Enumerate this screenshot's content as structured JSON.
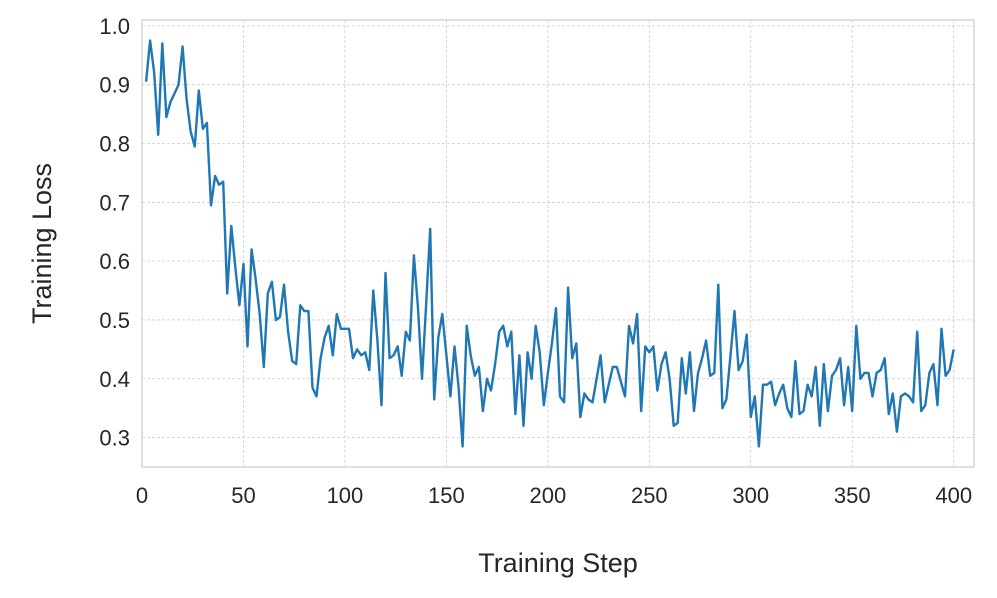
{
  "chart_data": {
    "type": "line",
    "xlabel": "Training Step",
    "ylabel": "Training Loss",
    "xlim": [
      0,
      410
    ],
    "ylim": [
      0.25,
      1.01
    ],
    "xticks": [
      0,
      50,
      100,
      150,
      200,
      250,
      300,
      350,
      400
    ],
    "yticks": [
      0.3,
      0.4,
      0.5,
      0.6,
      0.7,
      0.8,
      0.9,
      1.0
    ],
    "xtick_labels": [
      "0",
      "50",
      "100",
      "150",
      "200",
      "250",
      "300",
      "350",
      "400"
    ],
    "ytick_labels": [
      "0.3",
      "0.4",
      "0.5",
      "0.6",
      "0.7",
      "0.8",
      "0.9",
      "1.0"
    ],
    "grid": true,
    "line_color": "#1f77b4",
    "series": [
      {
        "x": [
          2,
          4,
          6,
          8,
          10,
          12,
          14,
          16,
          18,
          20,
          22,
          24,
          26,
          28,
          30,
          32,
          34,
          36,
          38,
          40,
          42,
          44,
          46,
          48,
          50,
          52,
          54,
          56,
          58,
          60,
          62,
          64,
          66,
          68,
          70,
          72,
          74,
          76,
          78,
          80,
          82,
          84,
          86,
          88,
          90,
          92,
          94,
          96,
          98,
          100,
          102,
          104,
          106,
          108,
          110,
          112,
          114,
          116,
          118,
          120,
          122,
          124,
          126,
          128,
          130,
          132,
          134,
          136,
          138,
          140,
          142,
          144,
          146,
          148,
          150,
          152,
          154,
          156,
          158,
          160,
          162,
          164,
          166,
          168,
          170,
          172,
          174,
          176,
          178,
          180,
          182,
          184,
          186,
          188,
          190,
          192,
          194,
          196,
          198,
          200,
          202,
          204,
          206,
          208,
          210,
          212,
          214,
          216,
          218,
          220,
          222,
          224,
          226,
          228,
          230,
          232,
          234,
          236,
          238,
          240,
          242,
          244,
          246,
          248,
          250,
          252,
          254,
          256,
          258,
          260,
          262,
          264,
          266,
          268,
          270,
          272,
          274,
          276,
          278,
          280,
          282,
          284,
          286,
          288,
          290,
          292,
          294,
          296,
          298,
          300,
          302,
          304,
          306,
          308,
          310,
          312,
          314,
          316,
          318,
          320,
          322,
          324,
          326,
          328,
          330,
          332,
          334,
          336,
          338,
          340,
          342,
          344,
          346,
          348,
          350,
          352,
          354,
          356,
          358,
          360,
          362,
          364,
          366,
          368,
          370,
          372,
          374,
          376,
          378,
          380,
          382,
          384,
          386,
          388,
          390,
          392,
          394,
          396,
          398,
          400
        ],
        "values": [
          0.905,
          0.975,
          0.92,
          0.815,
          0.97,
          0.845,
          0.87,
          0.885,
          0.9,
          0.965,
          0.875,
          0.82,
          0.795,
          0.89,
          0.825,
          0.835,
          0.695,
          0.745,
          0.73,
          0.735,
          0.545,
          0.66,
          0.59,
          0.525,
          0.595,
          0.455,
          0.62,
          0.57,
          0.51,
          0.42,
          0.545,
          0.565,
          0.5,
          0.505,
          0.56,
          0.48,
          0.43,
          0.425,
          0.525,
          0.515,
          0.515,
          0.385,
          0.37,
          0.435,
          0.47,
          0.49,
          0.44,
          0.51,
          0.485,
          0.485,
          0.485,
          0.435,
          0.45,
          0.44,
          0.445,
          0.415,
          0.55,
          0.465,
          0.355,
          0.58,
          0.435,
          0.44,
          0.455,
          0.405,
          0.48,
          0.465,
          0.61,
          0.52,
          0.4,
          0.525,
          0.655,
          0.365,
          0.47,
          0.51,
          0.44,
          0.37,
          0.455,
          0.385,
          0.285,
          0.49,
          0.44,
          0.405,
          0.42,
          0.345,
          0.4,
          0.38,
          0.425,
          0.48,
          0.49,
          0.455,
          0.48,
          0.34,
          0.44,
          0.32,
          0.445,
          0.4,
          0.49,
          0.445,
          0.355,
          0.41,
          0.46,
          0.52,
          0.37,
          0.36,
          0.555,
          0.435,
          0.46,
          0.335,
          0.375,
          0.365,
          0.36,
          0.4,
          0.44,
          0.36,
          0.39,
          0.42,
          0.42,
          0.395,
          0.37,
          0.49,
          0.46,
          0.51,
          0.345,
          0.455,
          0.445,
          0.455,
          0.38,
          0.425,
          0.445,
          0.4,
          0.32,
          0.325,
          0.435,
          0.375,
          0.445,
          0.345,
          0.41,
          0.435,
          0.465,
          0.405,
          0.41,
          0.56,
          0.35,
          0.365,
          0.44,
          0.515,
          0.415,
          0.43,
          0.475,
          0.335,
          0.37,
          0.285,
          0.39,
          0.39,
          0.395,
          0.355,
          0.375,
          0.39,
          0.35,
          0.335,
          0.43,
          0.34,
          0.345,
          0.39,
          0.37,
          0.42,
          0.32,
          0.425,
          0.345,
          0.405,
          0.415,
          0.435,
          0.355,
          0.42,
          0.345,
          0.49,
          0.4,
          0.41,
          0.41,
          0.37,
          0.41,
          0.415,
          0.435,
          0.34,
          0.375,
          0.31,
          0.37,
          0.375,
          0.37,
          0.36,
          0.48,
          0.345,
          0.355,
          0.41,
          0.425,
          0.355,
          0.485,
          0.405,
          0.415,
          0.45
        ]
      }
    ]
  }
}
